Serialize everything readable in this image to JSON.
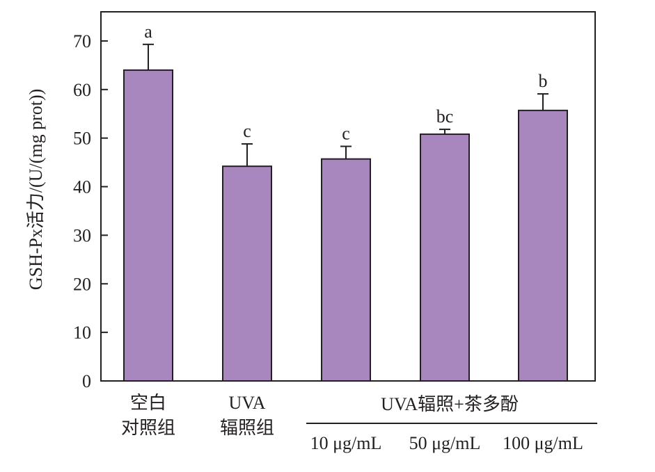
{
  "chart_data": {
    "type": "bar",
    "ylabel": "GSH-Px活力/(U/(mg prot))",
    "ylim": [
      0,
      76
    ],
    "yticks": [
      0,
      10,
      20,
      30,
      40,
      50,
      60,
      70
    ],
    "group_label": "UVA辐照+茶多酚",
    "categories": [
      {
        "lines": [
          "空白",
          "对照组"
        ]
      },
      {
        "lines": [
          "UVA",
          "辐照组"
        ]
      },
      {
        "lines": [
          "10 μg/mL"
        ]
      },
      {
        "lines": [
          "50 μg/mL"
        ]
      },
      {
        "lines": [
          "100 μg/mL"
        ]
      }
    ],
    "values": [
      64,
      44.2,
      45.7,
      50.8,
      55.7
    ],
    "errors": [
      5.3,
      4.6,
      2.6,
      1.0,
      3.4
    ],
    "significance": [
      "a",
      "c",
      "c",
      "bc",
      "b"
    ],
    "colors": {
      "bar": "#a887bf",
      "stroke": "#231f20"
    }
  }
}
